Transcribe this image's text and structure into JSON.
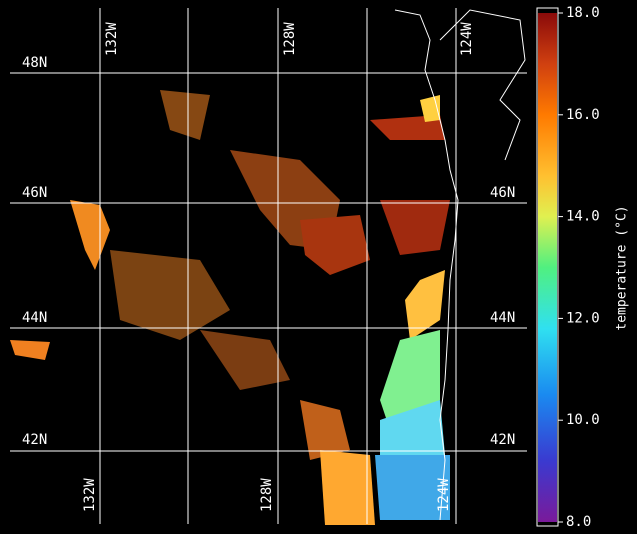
{
  "map": {
    "lat_labels_left": [
      "48N",
      "46N",
      "44N",
      "42N"
    ],
    "lat_labels_right": [
      "46N",
      "44N",
      "42N"
    ],
    "lon_labels_top": [
      "132W",
      "128W",
      "124W"
    ],
    "lon_labels_bottom": [
      "132W",
      "128W",
      "124W"
    ]
  },
  "colorbar": {
    "label": "temperature (°C)",
    "lim": [
      8,
      18
    ],
    "ticks": [
      {
        "value": 8,
        "label": "8.0"
      },
      {
        "value": 10,
        "label": "10.0"
      },
      {
        "value": 12,
        "label": "12.0"
      },
      {
        "value": 14,
        "label": "14.0"
      },
      {
        "value": 16,
        "label": "16.0"
      },
      {
        "value": 18,
        "label": "18.0"
      }
    ]
  }
}
